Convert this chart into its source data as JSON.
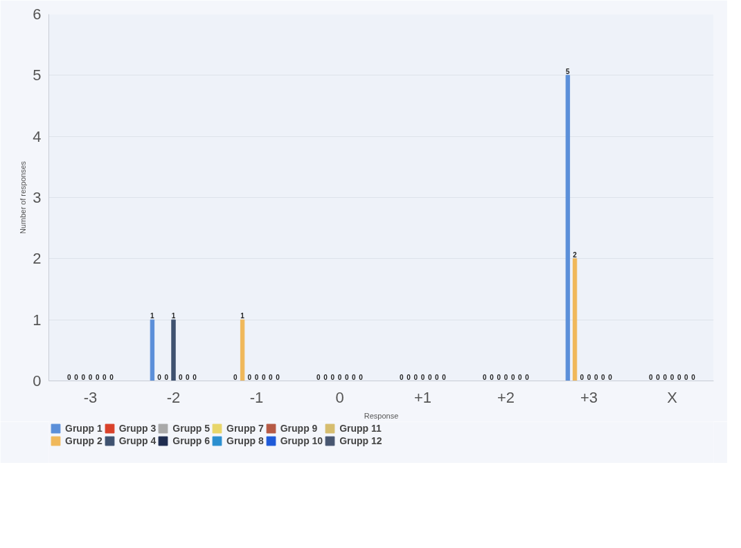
{
  "chart_data": {
    "type": "bar",
    "xlabel": "Response",
    "ylabel": "Number of responses",
    "categories": [
      "-3",
      "-2",
      "-1",
      "0",
      "+1",
      "+2",
      "+3",
      "X"
    ],
    "ylim": [
      0,
      6
    ],
    "yticks": [
      0,
      1,
      2,
      3,
      4,
      5,
      6
    ],
    "grid": "y",
    "legend": "bottom",
    "data_labels": true,
    "series": [
      {
        "name": "Grupp 1",
        "color": "#5b8fd9",
        "values": [
          0,
          1,
          0,
          0,
          0,
          0,
          5,
          0
        ]
      },
      {
        "name": "Grupp 2",
        "color": "#f0b85a",
        "values": [
          0,
          0,
          1,
          0,
          0,
          0,
          2,
          0
        ]
      },
      {
        "name": "Grupp 3",
        "color": "#d9412a",
        "values": [
          0,
          0,
          0,
          0,
          0,
          0,
          0,
          0
        ]
      },
      {
        "name": "Grupp 4",
        "color": "#3f5270",
        "values": [
          0,
          1,
          0,
          0,
          0,
          0,
          0,
          0
        ]
      },
      {
        "name": "Grupp 5",
        "color": "#a9a9a9",
        "values": [
          0,
          0,
          0,
          0,
          0,
          0,
          0,
          0
        ]
      },
      {
        "name": "Grupp 6",
        "color": "#1f2d50",
        "values": [
          0,
          0,
          0,
          0,
          0,
          0,
          0,
          0
        ]
      },
      {
        "name": "Grupp 7",
        "color": "#e8d66a",
        "values": [
          0,
          0,
          0,
          0,
          0,
          0,
          0,
          0
        ]
      },
      {
        "name": "Grupp 8",
        "color": "#2b8fd0",
        "values": [
          null,
          null,
          null,
          null,
          null,
          null,
          null,
          null
        ]
      },
      {
        "name": "Grupp 9",
        "color": "#b65a45",
        "values": [
          null,
          null,
          null,
          null,
          null,
          null,
          null,
          null
        ]
      },
      {
        "name": "Grupp 10",
        "color": "#1f5ad8",
        "values": [
          null,
          null,
          null,
          null,
          null,
          null,
          null,
          null
        ]
      },
      {
        "name": "Grupp 11",
        "color": "#d6bd6e",
        "values": [
          null,
          null,
          null,
          null,
          null,
          null,
          null,
          null
        ]
      },
      {
        "name": "Grupp 12",
        "color": "#485670",
        "values": [
          null,
          null,
          null,
          null,
          null,
          null,
          null,
          null
        ]
      }
    ]
  }
}
